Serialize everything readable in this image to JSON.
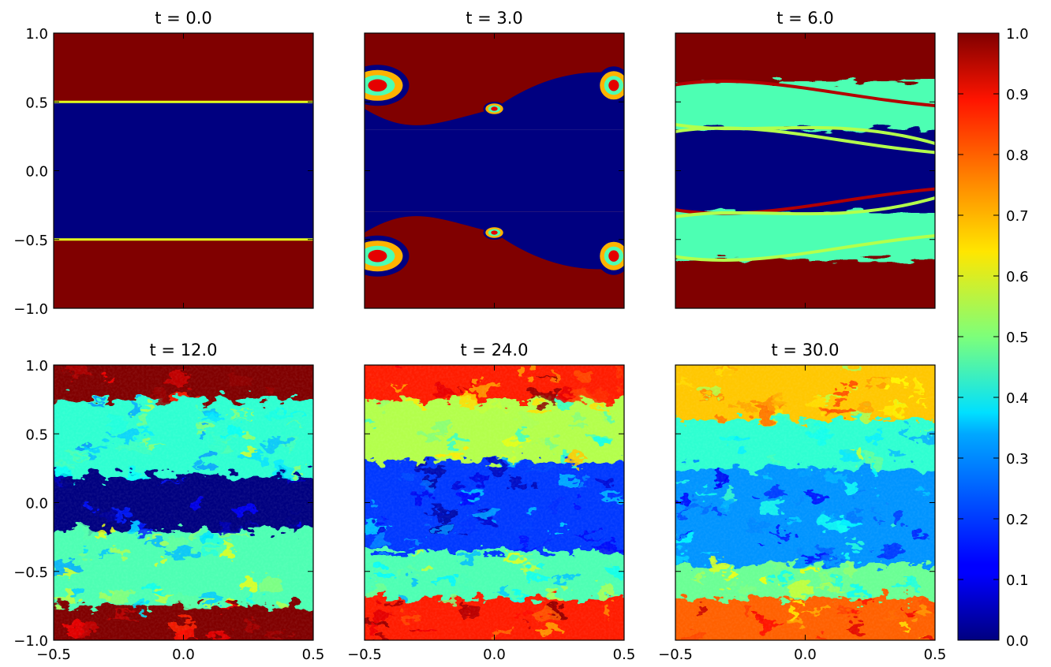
{
  "chart_data": [
    {
      "type": "heatmap",
      "title": "t = 0.0",
      "xlim": [
        -0.5,
        0.5
      ],
      "ylim": [
        -1.0,
        1.0
      ],
      "yticks": [
        "1.0",
        "0.5",
        "0.0",
        "−0.5",
        "−1.0"
      ],
      "xticks": [],
      "profile": "sharp",
      "bands": [
        {
          "y": [
            0.5,
            1.0
          ],
          "value": 1.0
        },
        {
          "y": [
            -0.5,
            0.5
          ],
          "value": 0.0
        },
        {
          "y": [
            -1.0,
            -0.5
          ],
          "value": 1.0
        }
      ]
    },
    {
      "type": "heatmap",
      "title": "t = 3.0",
      "xlim": [
        -0.5,
        0.5
      ],
      "ylim": [
        -1.0,
        1.0
      ],
      "yticks": [],
      "xticks": [],
      "profile": "roll-up",
      "bands": [
        {
          "y": [
            0.3,
            1.0
          ],
          "value": 1.0
        },
        {
          "y": [
            -0.3,
            0.3
          ],
          "value": 0.0
        },
        {
          "y": [
            -1.0,
            -0.3
          ],
          "value": 1.0
        }
      ]
    },
    {
      "type": "heatmap",
      "title": "t = 6.0",
      "xlim": [
        -0.5,
        0.5
      ],
      "ylim": [
        -1.0,
        1.0
      ],
      "yticks": [],
      "xticks": [],
      "profile": "mixing",
      "bands": [
        {
          "y": [
            0.65,
            1.0
          ],
          "value": 1.0
        },
        {
          "y": [
            0.3,
            0.65
          ],
          "value": 0.45
        },
        {
          "y": [
            -0.3,
            0.3
          ],
          "value": 0.0
        },
        {
          "y": [
            -0.65,
            -0.3
          ],
          "value": 0.45
        },
        {
          "y": [
            -1.0,
            -0.65
          ],
          "value": 1.0
        }
      ]
    },
    {
      "type": "heatmap",
      "title": "t = 12.0",
      "xlim": [
        -0.5,
        0.5
      ],
      "ylim": [
        -1.0,
        1.0
      ],
      "yticks": [
        "1.0",
        "0.5",
        "0.0",
        "−0.5",
        "−1.0"
      ],
      "xticks": [
        "−0.5",
        "0.0",
        "0.5"
      ],
      "profile": "turbulent",
      "bands": [
        {
          "y": [
            0.75,
            1.0
          ],
          "value": 1.0
        },
        {
          "y": [
            0.2,
            0.75
          ],
          "value": 0.42
        },
        {
          "y": [
            -0.2,
            0.2
          ],
          "value": 0.0
        },
        {
          "y": [
            -0.75,
            -0.2
          ],
          "value": 0.45
        },
        {
          "y": [
            -1.0,
            -0.75
          ],
          "value": 1.0
        }
      ]
    },
    {
      "type": "heatmap",
      "title": "t = 24.0",
      "xlim": [
        -0.5,
        0.5
      ],
      "ylim": [
        -1.0,
        1.0
      ],
      "yticks": [],
      "xticks": [
        "−0.5",
        "0.0",
        "0.5"
      ],
      "profile": "turbulent",
      "bands": [
        {
          "y": [
            0.75,
            1.0
          ],
          "value": 0.85
        },
        {
          "y": [
            0.3,
            0.75
          ],
          "value": 0.55
        },
        {
          "y": [
            -0.35,
            0.3
          ],
          "value": 0.18
        },
        {
          "y": [
            -0.7,
            -0.35
          ],
          "value": 0.45
        },
        {
          "y": [
            -1.0,
            -0.7
          ],
          "value": 0.85
        }
      ]
    },
    {
      "type": "heatmap",
      "title": "t = 30.0",
      "xlim": [
        -0.5,
        0.5
      ],
      "ylim": [
        -1.0,
        1.0
      ],
      "yticks": [],
      "xticks": [
        "−0.5",
        "0.0",
        "0.5"
      ],
      "profile": "turbulent",
      "bands": [
        {
          "y": [
            0.6,
            1.0
          ],
          "value": 0.68
        },
        {
          "y": [
            0.25,
            0.6
          ],
          "value": 0.42
        },
        {
          "y": [
            -0.45,
            0.25
          ],
          "value": 0.27
        },
        {
          "y": [
            -0.7,
            -0.45
          ],
          "value": 0.48
        },
        {
          "y": [
            -1.0,
            -0.7
          ],
          "value": 0.78
        }
      ]
    }
  ],
  "colorbar": {
    "colormap": "jet",
    "range": [
      0.0,
      1.0
    ],
    "ticks": [
      "1.0",
      "0.9",
      "0.8",
      "0.7",
      "0.6",
      "0.5",
      "0.4",
      "0.3",
      "0.2",
      "0.1",
      "0.0"
    ]
  }
}
